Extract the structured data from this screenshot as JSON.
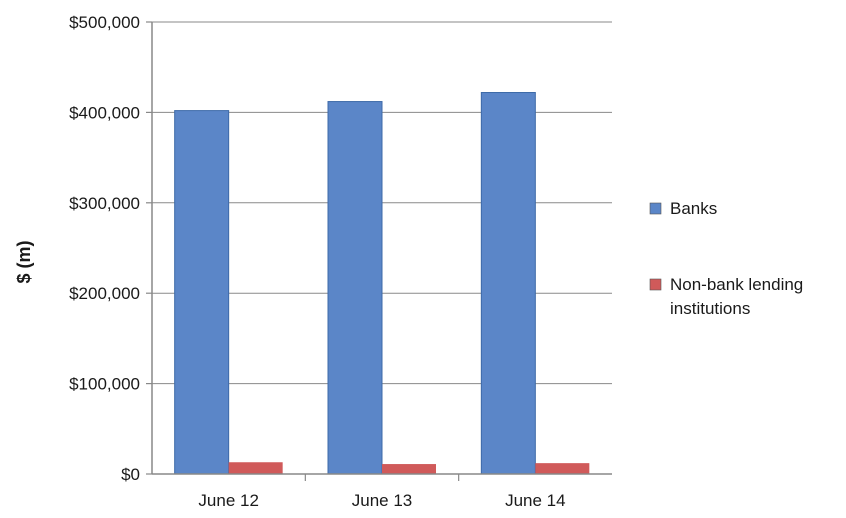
{
  "chart_data": {
    "type": "bar",
    "title": "",
    "xlabel": "",
    "ylabel": "$ (m)",
    "categories": [
      "June 12",
      "June 13",
      "June 14"
    ],
    "series": [
      {
        "name": "Banks",
        "values": [
          402000,
          412000,
          422000
        ],
        "color": "#5b86c8"
      },
      {
        "name": "Non-bank lending institutions",
        "values": [
          13000,
          11000,
          12000
        ],
        "color": "#d05a5a"
      }
    ],
    "ylim": [
      0,
      500000
    ],
    "yticks": [
      0,
      100000,
      200000,
      300000,
      400000,
      500000
    ],
    "ytick_labels": [
      "$0",
      "$100,000",
      "$200,000",
      "$300,000",
      "$400,000",
      "$500,000"
    ],
    "grid": true,
    "legend_position": "right"
  }
}
